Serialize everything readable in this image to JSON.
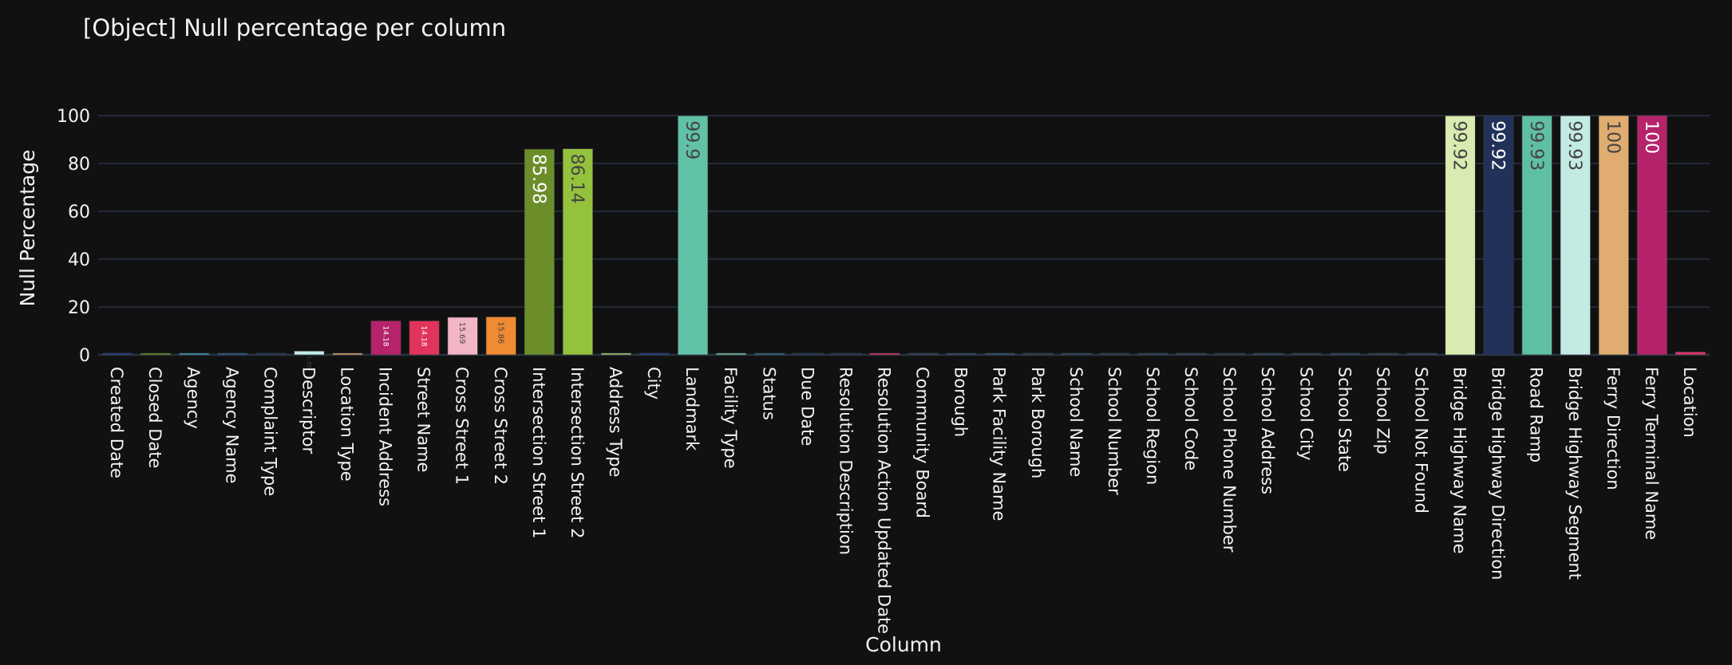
{
  "chart_data": {
    "type": "bar",
    "title": "[Object] Null percentage per column",
    "xlabel": "Column",
    "ylabel": "Null Percentage",
    "ylim": [
      0,
      100
    ],
    "yticks": [
      "0",
      "20",
      "40",
      "60",
      "80",
      "100"
    ],
    "grid": true,
    "legend": "none",
    "categories": [
      "Created Date",
      "Closed Date",
      "Agency",
      "Agency Name",
      "Complaint Type",
      "Descriptor",
      "Location Type",
      "Incident Address",
      "Street Name",
      "Cross Street 1",
      "Cross Street 2",
      "Intersection Street 1",
      "Intersection Street 2",
      "Address Type",
      "City",
      "Landmark",
      "Facility Type",
      "Status",
      "Due Date",
      "Resolution Description",
      "Resolution Action Updated Date",
      "Community Board",
      "Borough",
      "Park Facility Name",
      "Park Borough",
      "School Name",
      "School Number",
      "School Region",
      "School Code",
      "School Phone Number",
      "School Address",
      "School City",
      "School State",
      "School Zip",
      "School Not Found",
      "Bridge Highway Name",
      "Bridge Highway Direction",
      "Road Ramp",
      "Bridge Highway Segment",
      "Ferry Direction",
      "Ferry Terminal Name",
      "Location"
    ],
    "values": [
      0,
      0.28,
      0,
      0,
      0,
      1.55,
      0,
      14.18,
      14.18,
      15.69,
      15.86,
      85.98,
      86.14,
      0.7,
      0.6,
      99.9,
      0.4,
      0,
      0,
      0.1,
      0.4,
      0,
      0,
      0,
      0,
      0,
      0,
      0,
      0,
      0,
      0,
      0,
      0,
      0,
      0,
      99.92,
      99.92,
      99.93,
      99.93,
      100,
      100,
      1.2
    ],
    "data_labels": [
      "",
      "",
      "",
      "",
      "",
      "1.55",
      "",
      "14.18",
      "14.18",
      "15.69",
      "15.86",
      "85.98",
      "86.14",
      "",
      "",
      "99.9",
      "",
      "",
      "",
      "",
      "",
      "",
      "",
      "",
      "",
      "",
      "",
      "",
      "",
      "",
      "",
      "",
      "",
      "",
      "",
      "99.92",
      "99.92",
      "99.93",
      "99.93",
      "100",
      "100",
      ""
    ],
    "colors": [
      "#1f3a93",
      "#6b8e23",
      "#3a9fc4",
      "#2a5c8a",
      "#1e3a5f",
      "#c2ede4",
      "#e0a96d",
      "#b5236b",
      "#e2335d",
      "#f3b6c7",
      "#f08a33",
      "#6b8e2a",
      "#95c23c",
      "#a8c97a",
      "#1f3a93",
      "#61c2a8",
      "#7ec8b0",
      "#2b6d85",
      "#1e3a5f",
      "#253b5a",
      "#d9356c",
      "#2b3f5f",
      "#2d4b6a",
      "#2a5575",
      "#2d3e55",
      "#2b4a66",
      "#2c3e58",
      "#27455e",
      "#2a4460",
      "#2b3e55",
      "#2a4a62",
      "#2b3f5a",
      "#2a4862",
      "#2b405a",
      "#2b4562",
      "#d9ebb0",
      "#22315a",
      "#5fbfa3",
      "#c3ebe4",
      "#e0ac6f",
      "#b5236b",
      "#d9356c"
    ],
    "label_colors": [
      "",
      "",
      "",
      "",
      "",
      "#444444",
      "",
      "#ffffff",
      "#ffffff",
      "#444444",
      "#444444",
      "#ffffff",
      "#444444",
      "",
      "",
      "#444444",
      "",
      "",
      "",
      "",
      "",
      "",
      "",
      "",
      "",
      "",
      "",
      "",
      "",
      "",
      "",
      "",
      "",
      "",
      "",
      "#444444",
      "#ffffff",
      "#444444",
      "#444444",
      "#444444",
      "#ffffff",
      ""
    ]
  }
}
